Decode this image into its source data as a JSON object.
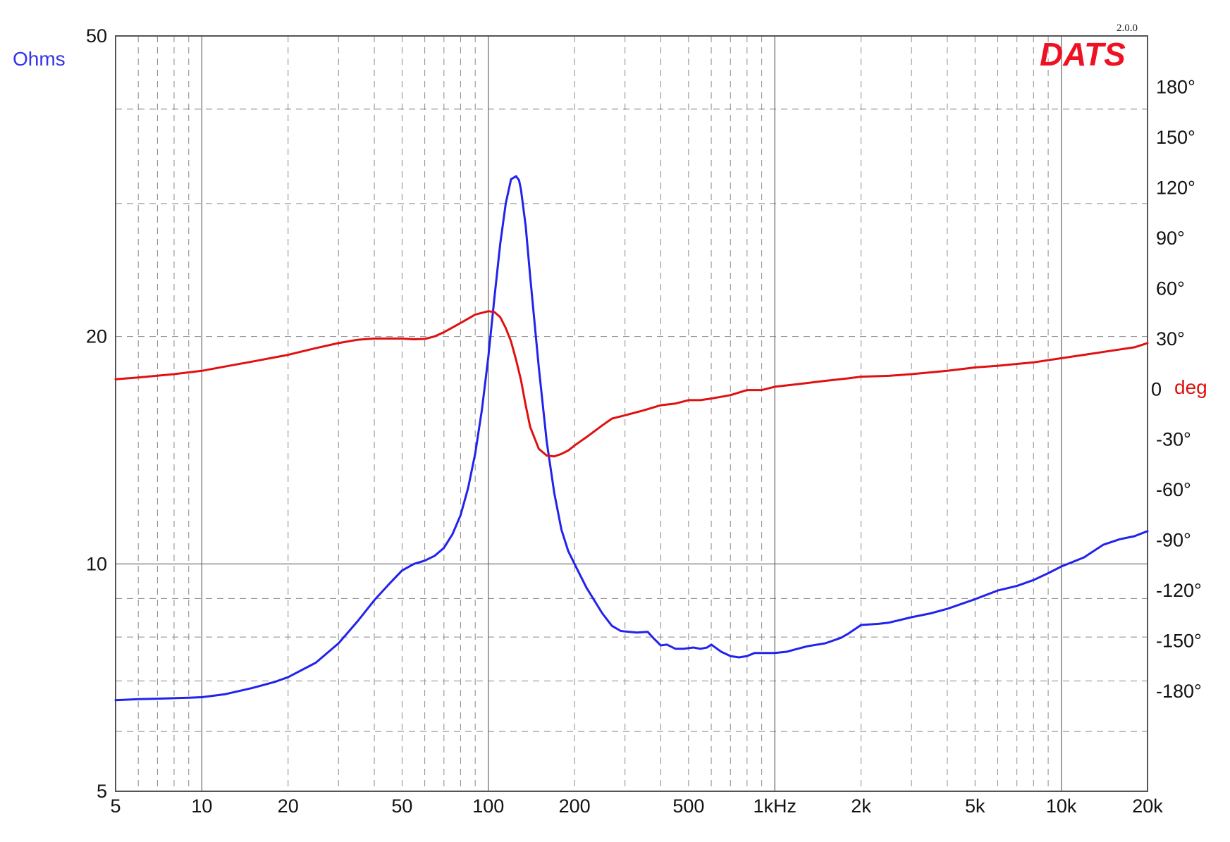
{
  "chart_data": {
    "type": "line",
    "title": "",
    "xlabel": "",
    "ylabel": "Ohms",
    "y2label": "deg",
    "x_scale": "log",
    "y_scale": "log",
    "xlim": [
      5,
      20000
    ],
    "ylim": [
      5,
      50
    ],
    "y2lim": [
      -240,
      210
    ],
    "grid": true,
    "legend": "none",
    "brand": "DATS",
    "version": "2.0.0",
    "x_ticks": [
      {
        "value": 5,
        "label": "5"
      },
      {
        "value": 10,
        "label": "10"
      },
      {
        "value": 20,
        "label": "20"
      },
      {
        "value": 50,
        "label": "50"
      },
      {
        "value": 100,
        "label": "100"
      },
      {
        "value": 200,
        "label": "200"
      },
      {
        "value": 500,
        "label": "500"
      },
      {
        "value": 1000,
        "label": "1kHz"
      },
      {
        "value": 2000,
        "label": "2k"
      },
      {
        "value": 5000,
        "label": "5k"
      },
      {
        "value": 10000,
        "label": "10k"
      },
      {
        "value": 20000,
        "label": "20k"
      }
    ],
    "y_ticks": [
      {
        "value": 50,
        "label": "50"
      },
      {
        "value": 20,
        "label": "20"
      },
      {
        "value": 10,
        "label": "10"
      },
      {
        "value": 5,
        "label": "5"
      }
    ],
    "y2_ticks": [
      {
        "value": 180,
        "label": "180°"
      },
      {
        "value": 150,
        "label": "150°"
      },
      {
        "value": 120,
        "label": "120°"
      },
      {
        "value": 90,
        "label": "90°"
      },
      {
        "value": 60,
        "label": "60°"
      },
      {
        "value": 30,
        "label": "30°"
      },
      {
        "value": 0,
        "label": "0"
      },
      {
        "value": -30,
        "label": "-30°"
      },
      {
        "value": -60,
        "label": "-60°"
      },
      {
        "value": -90,
        "label": "-90°"
      },
      {
        "value": -120,
        "label": "-120°"
      },
      {
        "value": -150,
        "label": "-150°"
      },
      {
        "value": -180,
        "label": "-180°"
      }
    ],
    "series": [
      {
        "axis": "left",
        "color": "#2222ee",
        "x": [
          5,
          6,
          7,
          8,
          9,
          10,
          12,
          15,
          18,
          20,
          25,
          30,
          35,
          40,
          45,
          50,
          55,
          60,
          65,
          70,
          75,
          80,
          85,
          90,
          95,
          100,
          105,
          110,
          115,
          120,
          125,
          128,
          130,
          135,
          140,
          150,
          160,
          170,
          180,
          190,
          200,
          220,
          250,
          270,
          290,
          310,
          330,
          360,
          380,
          400,
          420,
          450,
          480,
          520,
          550,
          580,
          600,
          650,
          700,
          750,
          800,
          850,
          900,
          950,
          1000,
          1100,
          1200,
          1300,
          1500,
          1700,
          1800,
          2000,
          2300,
          2500,
          3000,
          3500,
          4000,
          5000,
          6000,
          7000,
          8000,
          9000,
          10000,
          12000,
          14000,
          16000,
          18000,
          20000
        ],
        "values": [
          6.6,
          6.62,
          6.63,
          6.64,
          6.65,
          6.66,
          6.72,
          6.85,
          6.98,
          7.08,
          7.4,
          7.85,
          8.4,
          8.95,
          9.4,
          9.8,
          10.0,
          10.1,
          10.25,
          10.5,
          10.95,
          11.6,
          12.6,
          14.0,
          16.0,
          18.8,
          22.5,
          26.5,
          30.0,
          32.3,
          32.6,
          32.2,
          31.3,
          28.0,
          24.0,
          18.2,
          14.5,
          12.4,
          11.1,
          10.4,
          10.0,
          9.3,
          8.6,
          8.28,
          8.15,
          8.13,
          8.11,
          8.13,
          7.95,
          7.8,
          7.82,
          7.72,
          7.72,
          7.75,
          7.72,
          7.75,
          7.82,
          7.65,
          7.55,
          7.52,
          7.55,
          7.62,
          7.62,
          7.62,
          7.62,
          7.65,
          7.72,
          7.78,
          7.85,
          7.98,
          8.08,
          8.3,
          8.33,
          8.36,
          8.5,
          8.6,
          8.72,
          8.98,
          9.22,
          9.35,
          9.52,
          9.72,
          9.92,
          10.2,
          10.6,
          10.78,
          10.88,
          11.05
        ]
      },
      {
        "axis": "right",
        "color": "#e01010",
        "x": [
          5,
          6,
          8,
          10,
          12,
          15,
          20,
          25,
          30,
          35,
          40,
          45,
          50,
          55,
          60,
          65,
          70,
          80,
          90,
          100,
          105,
          110,
          115,
          120,
          125,
          130,
          135,
          140,
          150,
          160,
          170,
          180,
          190,
          200,
          220,
          250,
          270,
          300,
          350,
          400,
          450,
          500,
          550,
          600,
          700,
          800,
          900,
          1000,
          1200,
          1500,
          1800,
          2000,
          2500,
          3000,
          4000,
          5000,
          6000,
          8000,
          10000,
          12000,
          15000,
          18000,
          20000
        ],
        "values": [
          5.5,
          6.5,
          8.5,
          10.5,
          13,
          16,
          20,
          24,
          27,
          29,
          29.7,
          29.7,
          29.7,
          29.3,
          29.5,
          31,
          33.5,
          39,
          44,
          46,
          45.5,
          42.5,
          36,
          28,
          17,
          5,
          -10,
          -23,
          -36,
          -40,
          -40.5,
          -39,
          -37,
          -34,
          -29,
          -22,
          -18,
          -16,
          -13,
          -10,
          -9,
          -7,
          -7,
          -6,
          -4,
          -1,
          -1,
          1,
          2.5,
          4.5,
          6,
          7,
          7.5,
          8.5,
          10.5,
          12.5,
          13.5,
          15.5,
          18,
          20,
          22.5,
          24.5,
          27
        ]
      }
    ]
  }
}
